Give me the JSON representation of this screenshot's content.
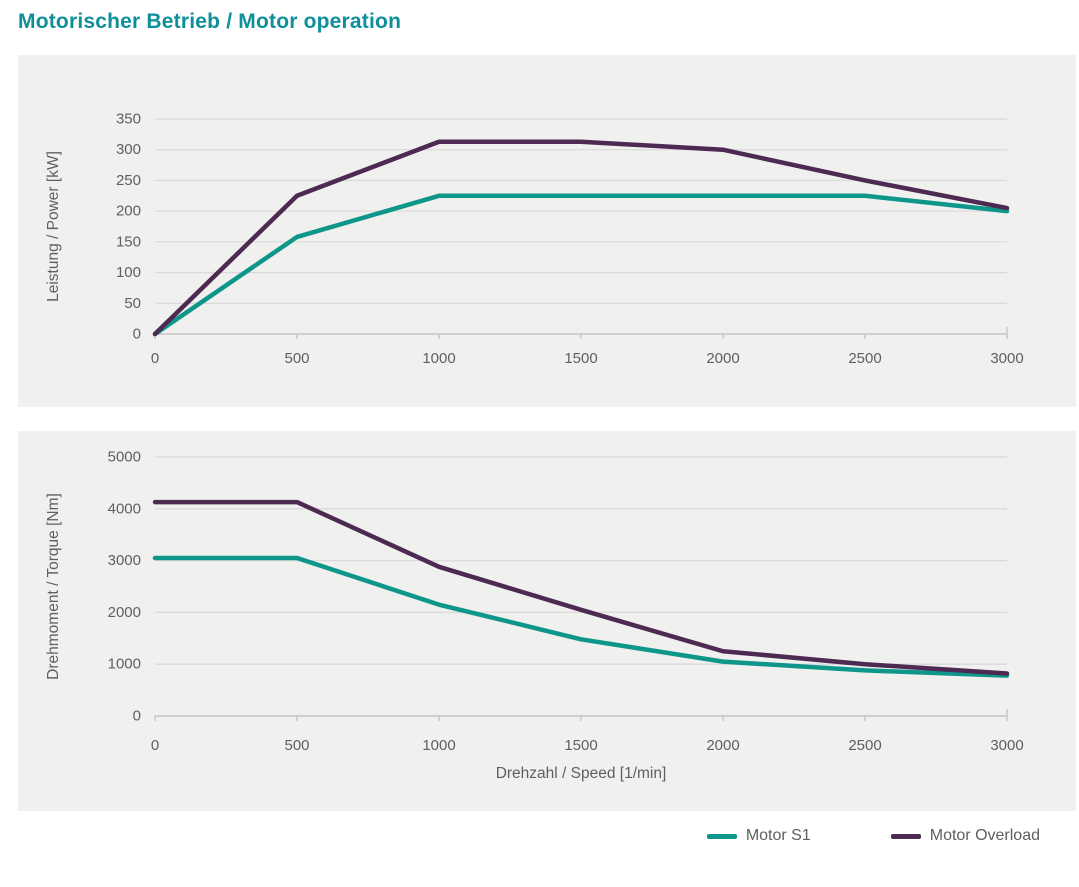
{
  "page": {
    "title": "Motorischer Betrieb / Motor operation"
  },
  "colors": {
    "title_teal": "#0E8F99",
    "series_teal": "#0F968B",
    "series_purple": "#4C2A52",
    "panel_bg": "#F0F0EF",
    "grid": "#DADADA",
    "axis": "#C4C4C4",
    "text": "#5F5F5F"
  },
  "legend": [
    {
      "label": "Motor S1",
      "color": "#0F968B"
    },
    {
      "label": "Motor Overload",
      "color": "#4C2A52"
    }
  ],
  "chart_data": [
    {
      "type": "line",
      "title": "",
      "xlabel": "",
      "ylabel": "Leistung / Power [kW]",
      "x": [
        0,
        500,
        1000,
        1500,
        2000,
        2500,
        3000
      ],
      "xticks": [
        0,
        500,
        1000,
        1500,
        2000,
        2500,
        3000
      ],
      "yticks": [
        0,
        50,
        100,
        150,
        200,
        250,
        300,
        350
      ],
      "xlim": [
        0,
        3000
      ],
      "ylim": [
        0,
        350
      ],
      "grid": true,
      "legend_position": "shared-bottom-right",
      "series": [
        {
          "name": "Motor S1",
          "color": "#0F968B",
          "values": [
            0,
            158,
            225,
            225,
            225,
            225,
            200
          ]
        },
        {
          "name": "Motor Overload",
          "color": "#4C2A52",
          "values": [
            0,
            225,
            313,
            313,
            300,
            250,
            205
          ]
        }
      ]
    },
    {
      "type": "line",
      "title": "",
      "xlabel": "Drehzahl / Speed [1/min]",
      "ylabel": "Drehmoment / Torque [Nm]",
      "x": [
        0,
        500,
        1000,
        1500,
        2000,
        2500,
        3000
      ],
      "xticks": [
        0,
        500,
        1000,
        1500,
        2000,
        2500,
        3000
      ],
      "yticks": [
        0,
        1000,
        2000,
        3000,
        4000,
        5000
      ],
      "xlim": [
        0,
        3000
      ],
      "ylim": [
        0,
        5000
      ],
      "grid": true,
      "legend_position": "shared-bottom-right",
      "series": [
        {
          "name": "Motor S1",
          "color": "#0F968B",
          "values": [
            3050,
            3050,
            2150,
            1480,
            1050,
            880,
            780
          ]
        },
        {
          "name": "Motor Overload",
          "color": "#4C2A52",
          "values": [
            4130,
            4130,
            2880,
            2050,
            1250,
            1000,
            820
          ]
        }
      ]
    }
  ]
}
